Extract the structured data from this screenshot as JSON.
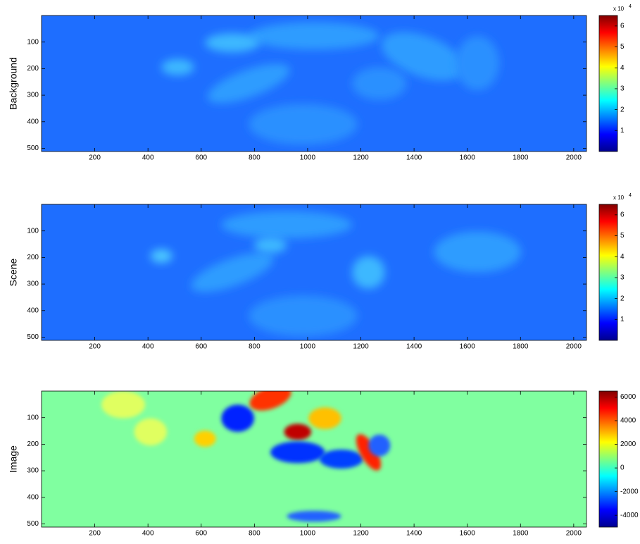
{
  "chart_data": [
    {
      "type": "heatmap",
      "ylabel": "Background",
      "xlim": [
        0,
        2048
      ],
      "xticks": [
        200,
        400,
        600,
        800,
        1000,
        1200,
        1400,
        1600,
        1800,
        2000
      ],
      "ylim": [
        0,
        512
      ],
      "yticks": [
        100,
        200,
        300,
        400,
        500
      ],
      "colorbar_lim": [
        0,
        65000
      ],
      "colorbar_ticks": [
        {
          "value": 10000,
          "label": "1"
        },
        {
          "value": 20000,
          "label": "2"
        },
        {
          "value": 30000,
          "label": "3"
        },
        {
          "value": 40000,
          "label": "4"
        },
        {
          "value": 50000,
          "label": "5"
        },
        {
          "value": 60000,
          "label": "6"
        }
      ],
      "colorbar_multiplier": "x 10",
      "colorbar_exponent": "4"
    },
    {
      "type": "heatmap",
      "ylabel": "Scene",
      "xlim": [
        0,
        2048
      ],
      "xticks": [
        200,
        400,
        600,
        800,
        1000,
        1200,
        1400,
        1600,
        1800,
        2000
      ],
      "ylim": [
        0,
        512
      ],
      "yticks": [
        100,
        200,
        300,
        400,
        500
      ],
      "colorbar_lim": [
        0,
        65000
      ],
      "colorbar_ticks": [
        {
          "value": 10000,
          "label": "1"
        },
        {
          "value": 20000,
          "label": "2"
        },
        {
          "value": 30000,
          "label": "3"
        },
        {
          "value": 40000,
          "label": "4"
        },
        {
          "value": 50000,
          "label": "5"
        },
        {
          "value": 60000,
          "label": "6"
        }
      ],
      "colorbar_multiplier": "x 10",
      "colorbar_exponent": "4"
    },
    {
      "type": "heatmap",
      "ylabel": "Image",
      "xlim": [
        0,
        2048
      ],
      "xticks": [
        200,
        400,
        600,
        800,
        1000,
        1200,
        1400,
        1600,
        1800,
        2000
      ],
      "ylim": [
        0,
        512
      ],
      "yticks": [
        100,
        200,
        300,
        400,
        500
      ],
      "colorbar_lim": [
        -5000,
        6500
      ],
      "colorbar_ticks": [
        -4000,
        -2000,
        0,
        2000,
        4000,
        6000
      ]
    }
  ]
}
